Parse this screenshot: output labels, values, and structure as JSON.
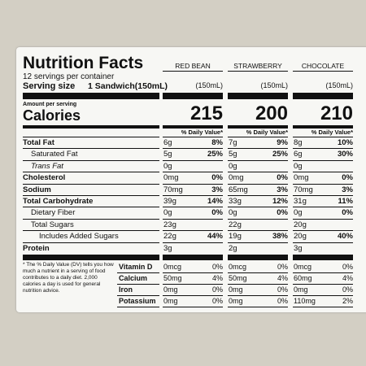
{
  "title": "Nutrition Facts",
  "servings": "12 servings per container",
  "serving_size_label": "Serving size",
  "serving_size": "1 Sandwich(150mL)",
  "amount_per_serving": "Amount per serving",
  "calories_label": "Calories",
  "columns": [
    {
      "name": "RED BEAN",
      "size": "(150mL)",
      "calories": 215,
      "dv_header": "% Daily Value*"
    },
    {
      "name": "STRAWBERRY",
      "size": "(150mL)",
      "calories": 200,
      "dv_header": "% Daily Value*"
    },
    {
      "name": "CHOCOLATE",
      "size": "(150mL)",
      "calories": 210,
      "dv_header": "% Daily Value*"
    }
  ],
  "nutrients": [
    {
      "label": "Total Fat",
      "values": [
        {
          "amount": "6g",
          "dv": "8%"
        },
        {
          "amount": "7g",
          "dv": "9%"
        },
        {
          "amount": "8g",
          "dv": "10%"
        }
      ]
    },
    {
      "label": "Saturated Fat",
      "values": [
        {
          "amount": "5g",
          "dv": "25%"
        },
        {
          "amount": "5g",
          "dv": "25%"
        },
        {
          "amount": "6g",
          "dv": "30%"
        }
      ]
    },
    {
      "label": "Trans Fat",
      "values": [
        {
          "amount": "0g"
        },
        {
          "amount": "0g"
        },
        {
          "amount": "0g"
        }
      ]
    },
    {
      "label": "Cholesterol",
      "values": [
        {
          "amount": "0mg",
          "dv": "0%"
        },
        {
          "amount": "0mg",
          "dv": "0%"
        },
        {
          "amount": "0mg",
          "dv": "0%"
        }
      ]
    },
    {
      "label": "Sodium",
      "values": [
        {
          "amount": "70mg",
          "dv": "3%"
        },
        {
          "amount": "65mg",
          "dv": "3%"
        },
        {
          "amount": "70mg",
          "dv": "3%"
        }
      ]
    },
    {
      "label": "Total Carbohydrate",
      "values": [
        {
          "amount": "39g",
          "dv": "14%"
        },
        {
          "amount": "33g",
          "dv": "12%"
        },
        {
          "amount": "31g",
          "dv": "11%"
        }
      ]
    },
    {
      "label": "Dietary Fiber",
      "values": [
        {
          "amount": "0g",
          "dv": "0%"
        },
        {
          "amount": "0g",
          "dv": "0%"
        },
        {
          "amount": "0g",
          "dv": "0%"
        }
      ]
    },
    {
      "label": "Total Sugars",
      "values": [
        {
          "amount": "23g"
        },
        {
          "amount": "22g"
        },
        {
          "amount": "20g"
        }
      ]
    },
    {
      "label": "Includes Added Sugars",
      "values": [
        {
          "amount": "22g",
          "dv": "44%"
        },
        {
          "amount": "19g",
          "dv": "38%"
        },
        {
          "amount": "20g",
          "dv": "40%"
        }
      ]
    },
    {
      "label": "Protein",
      "values": [
        {
          "amount": "3g"
        },
        {
          "amount": "2g"
        },
        {
          "amount": "3g"
        }
      ]
    }
  ],
  "footnote": "* The % Daily Value (DV) tells you how much a nutrient in a serving of food contributes to a daily diet. 2,000 calories a day is used for general nutrition advice.",
  "vitamins": [
    {
      "label": "Vitamin D",
      "values": [
        {
          "amount": "0mcg",
          "dv": "0%"
        },
        {
          "amount": "0mcg",
          "dv": "0%"
        },
        {
          "amount": "0mcg",
          "dv": "0%"
        }
      ]
    },
    {
      "label": "Calcium",
      "values": [
        {
          "amount": "50mg",
          "dv": "4%"
        },
        {
          "amount": "50mg",
          "dv": "4%"
        },
        {
          "amount": "60mg",
          "dv": "4%"
        }
      ]
    },
    {
      "label": "Iron",
      "values": [
        {
          "amount": "0mg",
          "dv": "0%"
        },
        {
          "amount": "0mg",
          "dv": "0%"
        },
        {
          "amount": "0mg",
          "dv": "0%"
        }
      ]
    },
    {
      "label": "Potassium",
      "values": [
        {
          "amount": "0mg",
          "dv": "0%"
        },
        {
          "amount": "0mg",
          "dv": "0%"
        },
        {
          "amount": "110mg",
          "dv": "2%"
        }
      ]
    }
  ]
}
